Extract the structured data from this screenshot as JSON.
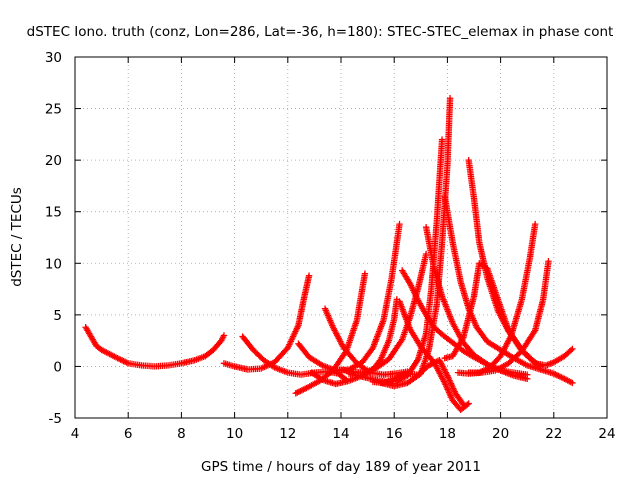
{
  "chart_data": {
    "type": "scatter",
    "title": "dSTEC Iono. truth (conz, Lon=286, Lat=-36, h=180): STEC-STEC_elemax in phase cont",
    "xlabel": "GPS time / hours of day 189 of year 2011",
    "ylabel": "dSTEC  / TECUs",
    "xlim": [
      4,
      24
    ],
    "ylim": [
      -5,
      30
    ],
    "xticks": [
      "4",
      "6",
      "8",
      "10",
      "12",
      "14",
      "16",
      "18",
      "20",
      "22",
      "24"
    ],
    "yticks": [
      "-5",
      "0",
      "5",
      "10",
      "15",
      "20",
      "25",
      "30"
    ],
    "grid": true,
    "marker": "+",
    "color": "#ff0000",
    "series": [
      {
        "x": [
          4.4,
          4.6,
          4.8,
          5.0,
          5.3,
          5.6,
          6.0,
          6.5,
          7.0,
          7.5,
          8.0,
          8.5,
          8.9,
          9.2,
          9.5,
          9.6
        ],
        "y": [
          3.8,
          2.9,
          2.0,
          1.6,
          1.2,
          0.8,
          0.3,
          0.1,
          0.0,
          0.1,
          0.3,
          0.6,
          1.0,
          1.6,
          2.5,
          3.0
        ]
      },
      {
        "x": [
          9.6,
          10.0,
          10.5,
          11.0,
          11.5,
          12.0,
          12.4,
          12.6,
          12.8
        ],
        "y": [
          0.3,
          0.0,
          -0.3,
          -0.2,
          0.4,
          1.8,
          4.0,
          6.5,
          8.8
        ]
      },
      {
        "x": [
          10.3,
          10.7,
          11.1,
          11.5,
          12.0,
          12.5,
          13.0,
          13.5,
          13.9,
          14.2
        ],
        "y": [
          2.9,
          1.6,
          0.6,
          -0.1,
          -0.6,
          -0.8,
          -0.6,
          -0.5,
          -0.7,
          -1.3
        ]
      },
      {
        "x": [
          12.3,
          12.7,
          13.2,
          13.7,
          14.2,
          14.6,
          14.9
        ],
        "y": [
          -2.6,
          -2.1,
          -1.4,
          -0.4,
          1.5,
          4.5,
          9.0
        ]
      },
      {
        "x": [
          12.4,
          12.8,
          13.3,
          13.8,
          14.3,
          14.8,
          15.2,
          15.6,
          15.9,
          16.1,
          16.2
        ],
        "y": [
          2.2,
          0.9,
          0.1,
          -0.4,
          -0.3,
          0.4,
          1.8,
          4.5,
          8.5,
          12.0,
          13.8
        ]
      },
      {
        "x": [
          13.4,
          13.7,
          14.1,
          14.6,
          15.1,
          15.6,
          16.0,
          16.5
        ],
        "y": [
          5.6,
          3.8,
          1.8,
          0.3,
          -0.6,
          -0.8,
          -0.7,
          -0.5
        ]
      },
      {
        "x": [
          12.9,
          13.3,
          13.8,
          14.3,
          14.8,
          15.3,
          15.8,
          16.3,
          16.6,
          16.9,
          17.1,
          17.2
        ],
        "y": [
          -0.6,
          -1.3,
          -1.7,
          -1.4,
          -0.9,
          -0.2,
          0.7,
          2.6,
          4.8,
          7.6,
          9.8,
          10.9
        ]
      },
      {
        "x": [
          14.0,
          14.4,
          14.8,
          15.2,
          15.5,
          15.8,
          16.0,
          16.1
        ],
        "y": [
          -0.3,
          -0.5,
          -0.6,
          -0.3,
          0.7,
          2.5,
          4.6,
          6.5
        ]
      },
      {
        "x": [
          14.3,
          14.8,
          15.3,
          15.7,
          16.1,
          16.5,
          16.9,
          17.2,
          17.4,
          17.6,
          17.8
        ],
        "y": [
          -0.7,
          -1.0,
          -1.3,
          -1.5,
          -1.4,
          -0.9,
          0.7,
          3.2,
          7.6,
          14.0,
          22.0
        ]
      },
      {
        "x": [
          15.5,
          16.0,
          16.5,
          17.0,
          17.3,
          17.6,
          17.8,
          18.0,
          18.1
        ],
        "y": [
          -1.6,
          -1.9,
          -1.6,
          -0.7,
          1.6,
          6.0,
          12.0,
          19.5,
          26.0
        ]
      },
      {
        "x": [
          15.2,
          15.6,
          16.0,
          16.4,
          16.9,
          17.3,
          17.7,
          18.0,
          18.3,
          18.6
        ],
        "y": [
          -1.5,
          -1.6,
          -1.2,
          -0.7,
          -0.8,
          0.1,
          0.6,
          -0.9,
          -2.6,
          -3.7
        ]
      },
      {
        "x": [
          16.2,
          16.6,
          17.0,
          17.5,
          17.9,
          18.2,
          18.5,
          18.8
        ],
        "y": [
          6.3,
          3.6,
          1.9,
          0.4,
          -1.6,
          -3.3,
          -4.2,
          -3.6
        ]
      },
      {
        "x": [
          16.3,
          16.6,
          16.9,
          17.2,
          17.5,
          17.8,
          18.2,
          18.6,
          19.0,
          19.5,
          20.0,
          20.5,
          21.0
        ],
        "y": [
          9.3,
          8.0,
          6.4,
          5.0,
          3.8,
          3.1,
          2.3,
          1.5,
          0.9,
          0.2,
          -0.4,
          -0.9,
          -1.2
        ]
      },
      {
        "x": [
          17.2,
          17.5,
          17.8,
          18.2,
          18.6,
          19.0,
          19.5,
          20.0,
          20.5,
          21.0
        ],
        "y": [
          13.5,
          9.5,
          6.8,
          4.2,
          2.3,
          1.1,
          0.2,
          -0.4,
          -0.6,
          -0.8
        ]
      },
      {
        "x": [
          17.9,
          18.2,
          18.5,
          18.8,
          19.1,
          19.5,
          20.0,
          20.5,
          21.0,
          21.5,
          22.0,
          22.4,
          22.7
        ],
        "y": [
          16.5,
          12.0,
          8.2,
          5.6,
          3.8,
          2.4,
          1.6,
          0.8,
          0.1,
          -0.3,
          -0.7,
          -1.2,
          -1.6
        ]
      },
      {
        "x": [
          18.8,
          19.0,
          19.2,
          19.5,
          19.9,
          20.3,
          20.8,
          21.3,
          21.7,
          22.0,
          22.4,
          22.7
        ],
        "y": [
          20.0,
          16.3,
          12.0,
          8.6,
          5.4,
          3.4,
          1.5,
          0.3,
          0.1,
          0.4,
          1.0,
          1.7
        ]
      },
      {
        "x": [
          17.9,
          18.2,
          18.6,
          19.0,
          19.2,
          19.5,
          19.9,
          20.3,
          20.8,
          21.2,
          21.5
        ],
        "y": [
          0.8,
          1.0,
          2.8,
          6.8,
          10.0,
          9.5,
          6.5,
          3.5,
          1.6,
          0.6,
          0.0
        ]
      },
      {
        "x": [
          18.8,
          19.2,
          19.6,
          20.0,
          20.4,
          20.8,
          21.1,
          21.3
        ],
        "y": [
          -0.6,
          -0.6,
          -0.1,
          1.0,
          3.0,
          6.5,
          10.5,
          13.8
        ]
      },
      {
        "x": [
          18.4,
          18.8,
          19.3,
          19.8,
          20.3,
          20.8,
          21.3,
          21.6,
          21.8
        ],
        "y": [
          -0.6,
          -0.7,
          -0.6,
          -0.4,
          0.3,
          1.5,
          3.5,
          6.5,
          10.2
        ]
      }
    ]
  }
}
